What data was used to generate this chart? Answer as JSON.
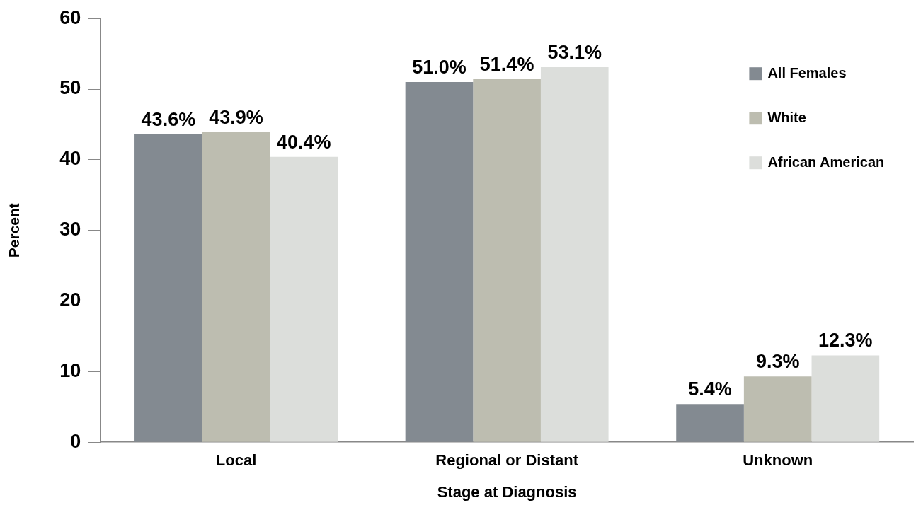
{
  "chart_data": {
    "type": "bar",
    "xlabel": "Stage at Diagnosis",
    "ylabel": "Percent",
    "categories": [
      "Local",
      "Regional or Distant",
      "Unknown"
    ],
    "series": [
      {
        "name": "All Females",
        "color": "#838a91",
        "values": [
          43.6,
          51.0,
          5.4
        ],
        "value_labels": [
          "43.6%",
          "51.0%",
          "5.4%"
        ]
      },
      {
        "name": "White",
        "color": "#bdbdb0",
        "values": [
          43.9,
          51.4,
          9.3
        ],
        "value_labels": [
          "43.9%",
          "51.4%",
          "9.3%"
        ]
      },
      {
        "name": "African American",
        "color": "#dcdedb",
        "values": [
          40.4,
          53.1,
          12.3
        ],
        "value_labels": [
          "40.4%",
          "53.1%",
          "12.3%"
        ]
      }
    ],
    "ylim": [
      0,
      60
    ],
    "yticks": [
      0,
      10,
      20,
      30,
      40,
      50,
      60
    ],
    "grid": false,
    "legend": "top right"
  }
}
